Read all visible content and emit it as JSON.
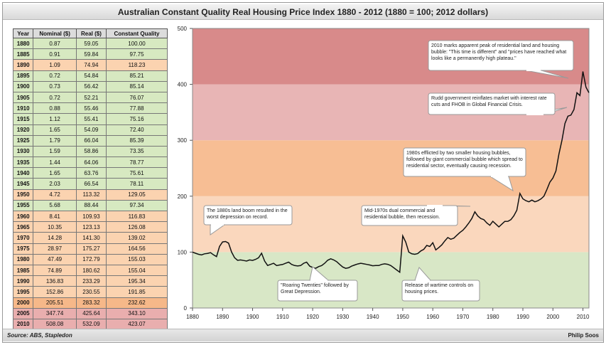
{
  "title": "Australian  Constant  Quality  Real Housing Price Index 1880 - 2012 (1880 = 100; 2012 dollars)",
  "footer": {
    "source": "Source: ABS, Stapledon",
    "author": "Philip Soos"
  },
  "table": {
    "headers": [
      "Year",
      "Nominal ($)",
      "Real ($)",
      "Constant Quality"
    ],
    "rows": [
      {
        "year": "1880",
        "nominal": "0.87",
        "real": "59.05",
        "cq": "100.00",
        "band": "g"
      },
      {
        "year": "1885",
        "nominal": "0.91",
        "real": "59.84",
        "cq": "97.75",
        "band": "g"
      },
      {
        "year": "1890",
        "nominal": "1.09",
        "real": "74.94",
        "cq": "118.23",
        "band": "o"
      },
      {
        "year": "1895",
        "nominal": "0.72",
        "real": "54.84",
        "cq": "85.21",
        "band": "g"
      },
      {
        "year": "1900",
        "nominal": "0.73",
        "real": "56.42",
        "cq": "85.14",
        "band": "g"
      },
      {
        "year": "1905",
        "nominal": "0.72",
        "real": "52.21",
        "cq": "76.07",
        "band": "g"
      },
      {
        "year": "1910",
        "nominal": "0.88",
        "real": "55.46",
        "cq": "77.88",
        "band": "g"
      },
      {
        "year": "1915",
        "nominal": "1.12",
        "real": "55.41",
        "cq": "75.16",
        "band": "g"
      },
      {
        "year": "1920",
        "nominal": "1.65",
        "real": "54.09",
        "cq": "72.40",
        "band": "g"
      },
      {
        "year": "1925",
        "nominal": "1.79",
        "real": "66.04",
        "cq": "85.39",
        "band": "g"
      },
      {
        "year": "1930",
        "nominal": "1.59",
        "real": "58.86",
        "cq": "73.35",
        "band": "g"
      },
      {
        "year": "1935",
        "nominal": "1.44",
        "real": "64.06",
        "cq": "78.77",
        "band": "g"
      },
      {
        "year": "1940",
        "nominal": "1.65",
        "real": "63.76",
        "cq": "75.61",
        "band": "g"
      },
      {
        "year": "1945",
        "nominal": "2.03",
        "real": "66.54",
        "cq": "78.11",
        "band": "g"
      },
      {
        "year": "1950",
        "nominal": "4.72",
        "real": "113.32",
        "cq": "129.05",
        "band": "o"
      },
      {
        "year": "1955",
        "nominal": "5.68",
        "real": "88.44",
        "cq": "97.34",
        "band": "g"
      },
      {
        "year": "1960",
        "nominal": "8.41",
        "real": "109.93",
        "cq": "116.83",
        "band": "o"
      },
      {
        "year": "1965",
        "nominal": "10.35",
        "real": "123.13",
        "cq": "126.08",
        "band": "o"
      },
      {
        "year": "1970",
        "nominal": "14.28",
        "real": "141.30",
        "cq": "139.02",
        "band": "o"
      },
      {
        "year": "1975",
        "nominal": "28.97",
        "real": "175.27",
        "cq": "164.56",
        "band": "o"
      },
      {
        "year": "1980",
        "nominal": "47.49",
        "real": "172.79",
        "cq": "155.03",
        "band": "o"
      },
      {
        "year": "1985",
        "nominal": "74.89",
        "real": "180.62",
        "cq": "155.04",
        "band": "o"
      },
      {
        "year": "1990",
        "nominal": "136.83",
        "real": "233.29",
        "cq": "195.34",
        "band": "o"
      },
      {
        "year": "1995",
        "nominal": "152.86",
        "real": "230.55",
        "cq": "191.85",
        "band": "o"
      },
      {
        "year": "2000",
        "nominal": "205.51",
        "real": "283.32",
        "cq": "232.62",
        "band": "o2"
      },
      {
        "year": "2005",
        "nominal": "347.74",
        "real": "425.64",
        "cq": "343.10",
        "band": "r"
      },
      {
        "year": "2010",
        "nominal": "508.08",
        "real": "532.09",
        "cq": "423.07",
        "band": "r"
      }
    ]
  },
  "chart_data": {
    "type": "line",
    "title": "Australian Constant Quality Real Housing Price Index 1880 - 2012 (1880 = 100; 2012 dollars)",
    "xlim": [
      1880,
      2012
    ],
    "ylim": [
      0,
      500
    ],
    "xticks": [
      1880,
      1890,
      1900,
      1910,
      1920,
      1930,
      1940,
      1950,
      1960,
      1970,
      1980,
      1990,
      2000,
      2010
    ],
    "yticks": [
      0,
      100,
      200,
      300,
      400,
      500
    ],
    "bands": [
      {
        "from": 0,
        "to": 100,
        "color": "#d8e7c6"
      },
      {
        "from": 100,
        "to": 200,
        "color": "#fad7bd"
      },
      {
        "from": 200,
        "to": 300,
        "color": "#f7be94"
      },
      {
        "from": 300,
        "to": 400,
        "color": "#e8b5b5"
      },
      {
        "from": 400,
        "to": 500,
        "color": "#d88a8a"
      }
    ],
    "series": [
      {
        "name": "Constant Quality Index",
        "x": [
          1880,
          1881,
          1882,
          1883,
          1884,
          1885,
          1886,
          1887,
          1888,
          1889,
          1890,
          1891,
          1892,
          1893,
          1894,
          1895,
          1896,
          1897,
          1898,
          1899,
          1900,
          1901,
          1902,
          1903,
          1904,
          1905,
          1906,
          1907,
          1908,
          1909,
          1910,
          1911,
          1912,
          1913,
          1914,
          1915,
          1916,
          1917,
          1918,
          1919,
          1920,
          1921,
          1922,
          1923,
          1924,
          1925,
          1926,
          1927,
          1928,
          1929,
          1930,
          1931,
          1932,
          1933,
          1934,
          1935,
          1936,
          1937,
          1938,
          1939,
          1940,
          1941,
          1942,
          1943,
          1944,
          1945,
          1946,
          1947,
          1948,
          1949,
          1950,
          1951,
          1952,
          1953,
          1954,
          1955,
          1956,
          1957,
          1958,
          1959,
          1960,
          1961,
          1962,
          1963,
          1964,
          1965,
          1966,
          1967,
          1968,
          1969,
          1970,
          1971,
          1972,
          1973,
          1974,
          1975,
          1976,
          1977,
          1978,
          1979,
          1980,
          1981,
          1982,
          1983,
          1984,
          1985,
          1986,
          1987,
          1988,
          1989,
          1990,
          1991,
          1992,
          1993,
          1994,
          1995,
          1996,
          1997,
          1998,
          1999,
          2000,
          2001,
          2002,
          2003,
          2004,
          2005,
          2006,
          2007,
          2008,
          2009,
          2010,
          2011,
          2012
        ],
        "values": [
          100,
          98,
          96,
          95,
          97,
          97.75,
          99,
          95,
          92,
          110,
          118.23,
          119,
          116,
          100,
          90,
          85.21,
          86,
          85,
          84,
          86,
          85.14,
          87,
          90,
          98,
          84,
          76.07,
          78,
          80,
          76,
          77,
          77.88,
          80,
          82,
          78,
          76,
          75.16,
          76,
          80,
          82,
          75,
          72.4,
          71,
          74,
          76,
          80,
          85.39,
          88,
          86,
          83,
          78,
          73.35,
          71,
          72,
          75,
          77,
          78.77,
          80,
          79,
          78,
          77,
          75.61,
          76,
          76,
          78,
          79,
          78.11,
          76,
          72,
          68,
          64,
          129.05,
          118,
          100,
          97,
          96,
          97.34,
          102,
          105,
          112,
          110,
          116.83,
          104,
          108,
          113,
          120,
          126.08,
          123,
          125,
          130,
          135,
          139.02,
          145,
          152,
          160,
          172,
          164.56,
          160,
          158,
          152,
          148,
          155.03,
          150,
          145,
          150,
          155,
          155.04,
          158,
          165,
          175,
          205,
          195.34,
          192,
          190,
          193,
          190,
          191.85,
          195,
          200,
          212,
          225,
          232.62,
          245,
          275,
          300,
          330,
          343.1,
          345,
          355,
          385,
          380,
          423.07,
          395,
          385
        ]
      }
    ],
    "annotations": [
      "2010 marks apparent peak of residential land and housing bubble: \"This time is different\" and \"prices have reached what looks like a permanently high plateau.\"",
      "Rudd government  reinflates market with interest rate cuts and FHOB in Global Financial Crisis.",
      "1980s efflicted by two smaller housing bubbles, followed by giant commercial bubble which spread to residential sector, eventually causing recession.",
      "Mid-1970s dual commercial and residential bubble, then recession.",
      "The 1880s land boom resulted in the worst depression on record.",
      "\"Roaring Twenties\" followed by Great Depression.",
      "Release of wartime controls on housing prices."
    ]
  }
}
